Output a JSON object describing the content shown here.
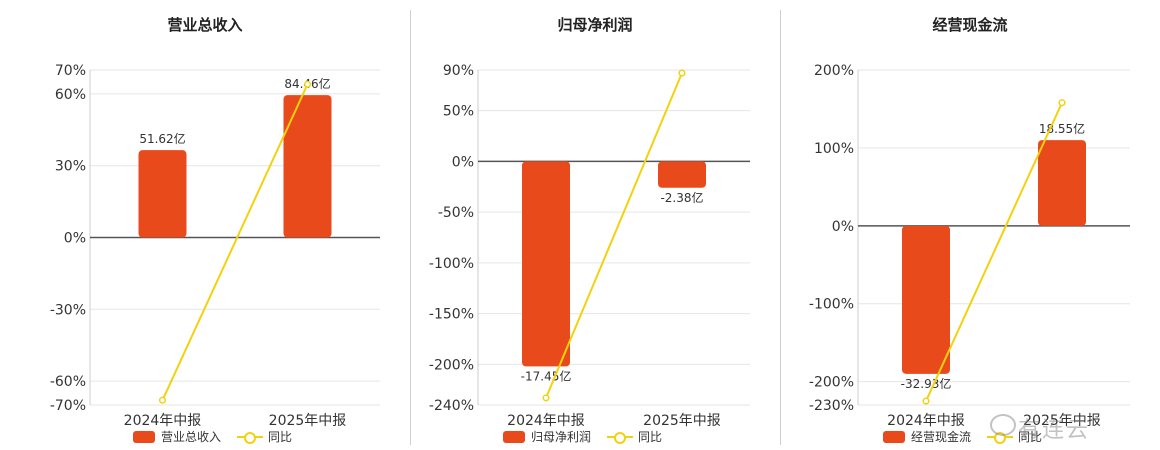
{
  "colors": {
    "bar": "#e84a1c",
    "line": "#f2d20f",
    "grid": "#e6e6e6",
    "axis": "#555555"
  },
  "watermark": "有连云",
  "chart_data": [
    {
      "type": "bar",
      "title": "营业总收入",
      "categories": [
        "2024年中报",
        "2025年中报"
      ],
      "series": [
        {
          "name": "营业总收入",
          "type": "bar",
          "values": [
            36.5,
            59.5
          ],
          "labels": [
            "51.62亿",
            "84.46亿"
          ]
        },
        {
          "name": "同比",
          "type": "line",
          "values": [
            -68,
            64
          ]
        }
      ],
      "yticks": [
        "70%",
        "60%",
        "30%",
        "0%",
        "-30%",
        "-60%",
        "-70%"
      ],
      "ytick_values": [
        70,
        60,
        30,
        0,
        -30,
        -60,
        -70
      ],
      "ylim": [
        -70,
        70
      ],
      "grid": true,
      "legend": "bottom-center"
    },
    {
      "type": "bar",
      "title": "归母净利润",
      "categories": [
        "2024年中报",
        "2025年中报"
      ],
      "series": [
        {
          "name": "归母净利润",
          "type": "bar",
          "values": [
            -202,
            -26
          ],
          "labels": [
            "-17.45亿",
            "-2.38亿"
          ]
        },
        {
          "name": "同比",
          "type": "line",
          "values": [
            -233,
            87
          ]
        }
      ],
      "yticks": [
        "90%",
        "50%",
        "0%",
        "-50%",
        "-100%",
        "-150%",
        "-200%",
        "-240%"
      ],
      "ytick_values": [
        90,
        50,
        0,
        -50,
        -100,
        -150,
        -200,
        -240
      ],
      "ylim": [
        -240,
        90
      ],
      "grid": true,
      "legend": "bottom-center"
    },
    {
      "type": "bar",
      "title": "经营现金流",
      "categories": [
        "2024年中报",
        "2025年中报"
      ],
      "series": [
        {
          "name": "经营现金流",
          "type": "bar",
          "values": [
            -190,
            110
          ],
          "labels": [
            "-32.93亿",
            "18.55亿"
          ]
        },
        {
          "name": "同比",
          "type": "line",
          "values": [
            -225,
            158
          ]
        }
      ],
      "yticks": [
        "200%",
        "100%",
        "0%",
        "-100%",
        "-200%",
        "-230%"
      ],
      "ytick_values": [
        200,
        100,
        0,
        -100,
        -200,
        -230
      ],
      "ylim": [
        -230,
        200
      ],
      "grid": true,
      "legend": "bottom-center"
    }
  ]
}
